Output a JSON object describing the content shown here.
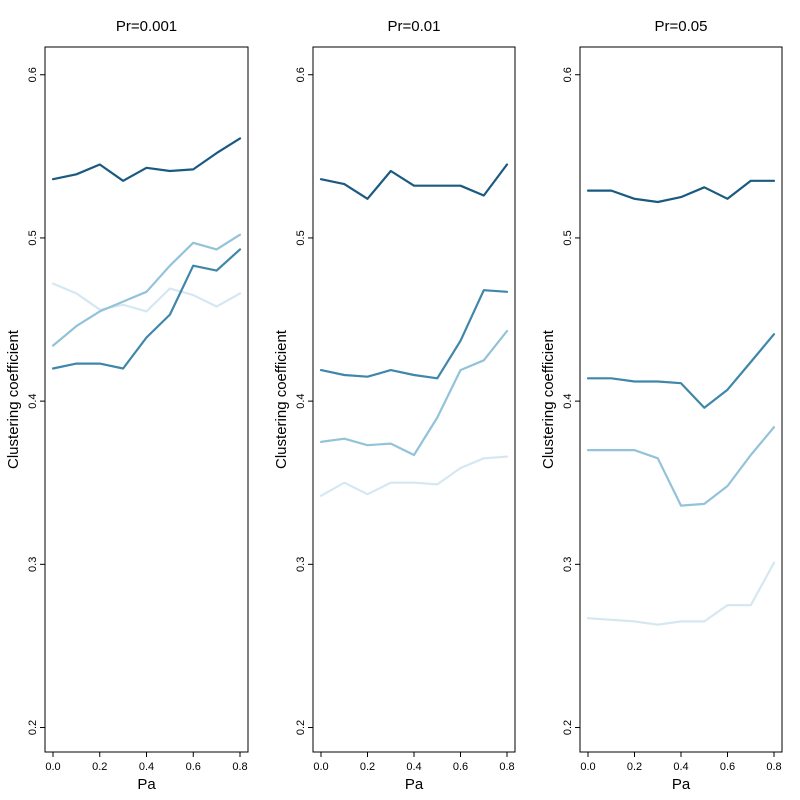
{
  "chart_data": [
    {
      "type": "line",
      "title": "Pr=0.001",
      "xlabel": "Pa",
      "ylabel": "Clustering coefficient",
      "xlim": [
        0,
        0.8
      ],
      "ylim": [
        0.185,
        0.617
      ],
      "xticks": [
        "0.0",
        "0.2",
        "0.4",
        "0.6",
        "0.8"
      ],
      "yticks": [
        "0.2",
        "0.3",
        "0.4",
        "0.5",
        "0.6"
      ],
      "grid": false,
      "x": [
        0,
        0.1,
        0.2,
        0.3,
        0.4,
        0.5,
        0.6,
        0.7,
        0.8
      ],
      "series": [
        {
          "color": "#1a5a80",
          "values": [
            0.536,
            0.539,
            0.545,
            0.535,
            0.543,
            0.541,
            0.542,
            0.552,
            0.561
          ]
        },
        {
          "color": "#3f87aa",
          "values": [
            0.42,
            0.423,
            0.423,
            0.42,
            0.439,
            0.453,
            0.483,
            0.48,
            0.493
          ]
        },
        {
          "color": "#92c3d9",
          "values": [
            0.434,
            0.446,
            0.455,
            0.461,
            0.467,
            0.483,
            0.497,
            0.493,
            0.502
          ]
        },
        {
          "color": "#d5e8f2",
          "values": [
            0.472,
            0.466,
            0.456,
            0.459,
            0.455,
            0.469,
            0.465,
            0.458,
            0.466
          ]
        }
      ]
    },
    {
      "type": "line",
      "title": "Pr=0.01",
      "xlabel": "Pa",
      "ylabel": "Clustering coefficient",
      "xlim": [
        0,
        0.8
      ],
      "ylim": [
        0.185,
        0.617
      ],
      "xticks": [
        "0.0",
        "0.2",
        "0.4",
        "0.6",
        "0.8"
      ],
      "yticks": [
        "0.2",
        "0.3",
        "0.4",
        "0.5",
        "0.6"
      ],
      "grid": false,
      "x": [
        0,
        0.1,
        0.2,
        0.3,
        0.4,
        0.5,
        0.6,
        0.7,
        0.8
      ],
      "series": [
        {
          "color": "#1a5a80",
          "values": [
            0.536,
            0.533,
            0.524,
            0.541,
            0.532,
            0.532,
            0.532,
            0.526,
            0.545
          ]
        },
        {
          "color": "#3f87aa",
          "values": [
            0.419,
            0.416,
            0.415,
            0.419,
            0.416,
            0.414,
            0.437,
            0.468,
            0.467
          ]
        },
        {
          "color": "#92c3d9",
          "values": [
            0.375,
            0.377,
            0.373,
            0.374,
            0.367,
            0.39,
            0.419,
            0.425,
            0.443
          ]
        },
        {
          "color": "#d5e8f2",
          "values": [
            0.342,
            0.35,
            0.343,
            0.35,
            0.35,
            0.349,
            0.359,
            0.365,
            0.366
          ]
        }
      ]
    },
    {
      "type": "line",
      "title": "Pr=0.05",
      "xlabel": "Pa",
      "ylabel": "Clustering coefficient",
      "xlim": [
        0,
        0.8
      ],
      "ylim": [
        0.185,
        0.617
      ],
      "xticks": [
        "0.0",
        "0.2",
        "0.4",
        "0.6",
        "0.8"
      ],
      "yticks": [
        "0.2",
        "0.3",
        "0.4",
        "0.5",
        "0.6"
      ],
      "grid": false,
      "x": [
        0,
        0.1,
        0.2,
        0.3,
        0.4,
        0.5,
        0.6,
        0.7,
        0.8
      ],
      "series": [
        {
          "color": "#1a5a80",
          "values": [
            0.529,
            0.529,
            0.524,
            0.522,
            0.525,
            0.531,
            0.524,
            0.535,
            0.535
          ]
        },
        {
          "color": "#3f87aa",
          "values": [
            0.414,
            0.414,
            0.412,
            0.412,
            0.411,
            0.396,
            0.407,
            0.424,
            0.441
          ]
        },
        {
          "color": "#92c3d9",
          "values": [
            0.37,
            0.37,
            0.37,
            0.365,
            0.336,
            0.337,
            0.348,
            0.367,
            0.384
          ]
        },
        {
          "color": "#d5e8f2",
          "values": [
            0.267,
            0.266,
            0.265,
            0.263,
            0.265,
            0.265,
            0.275,
            0.275,
            0.301
          ]
        }
      ]
    }
  ]
}
